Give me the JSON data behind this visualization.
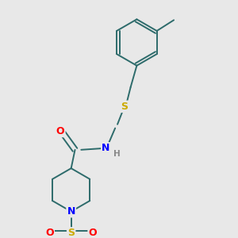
{
  "bg_color": "#e8e8e8",
  "bond_color": "#2d6b6b",
  "bond_width": 1.4,
  "atom_colors": {
    "O": "#ff0000",
    "N": "#0000ff",
    "S_thio": "#ccaa00",
    "S_sulfonyl": "#ccaa00",
    "H": "#888888"
  },
  "font_size_atom": 9,
  "font_size_H": 7.5,
  "figsize": [
    3.0,
    3.0
  ],
  "dpi": 100,
  "xlim": [
    0,
    300
  ],
  "ylim": [
    0,
    300
  ]
}
